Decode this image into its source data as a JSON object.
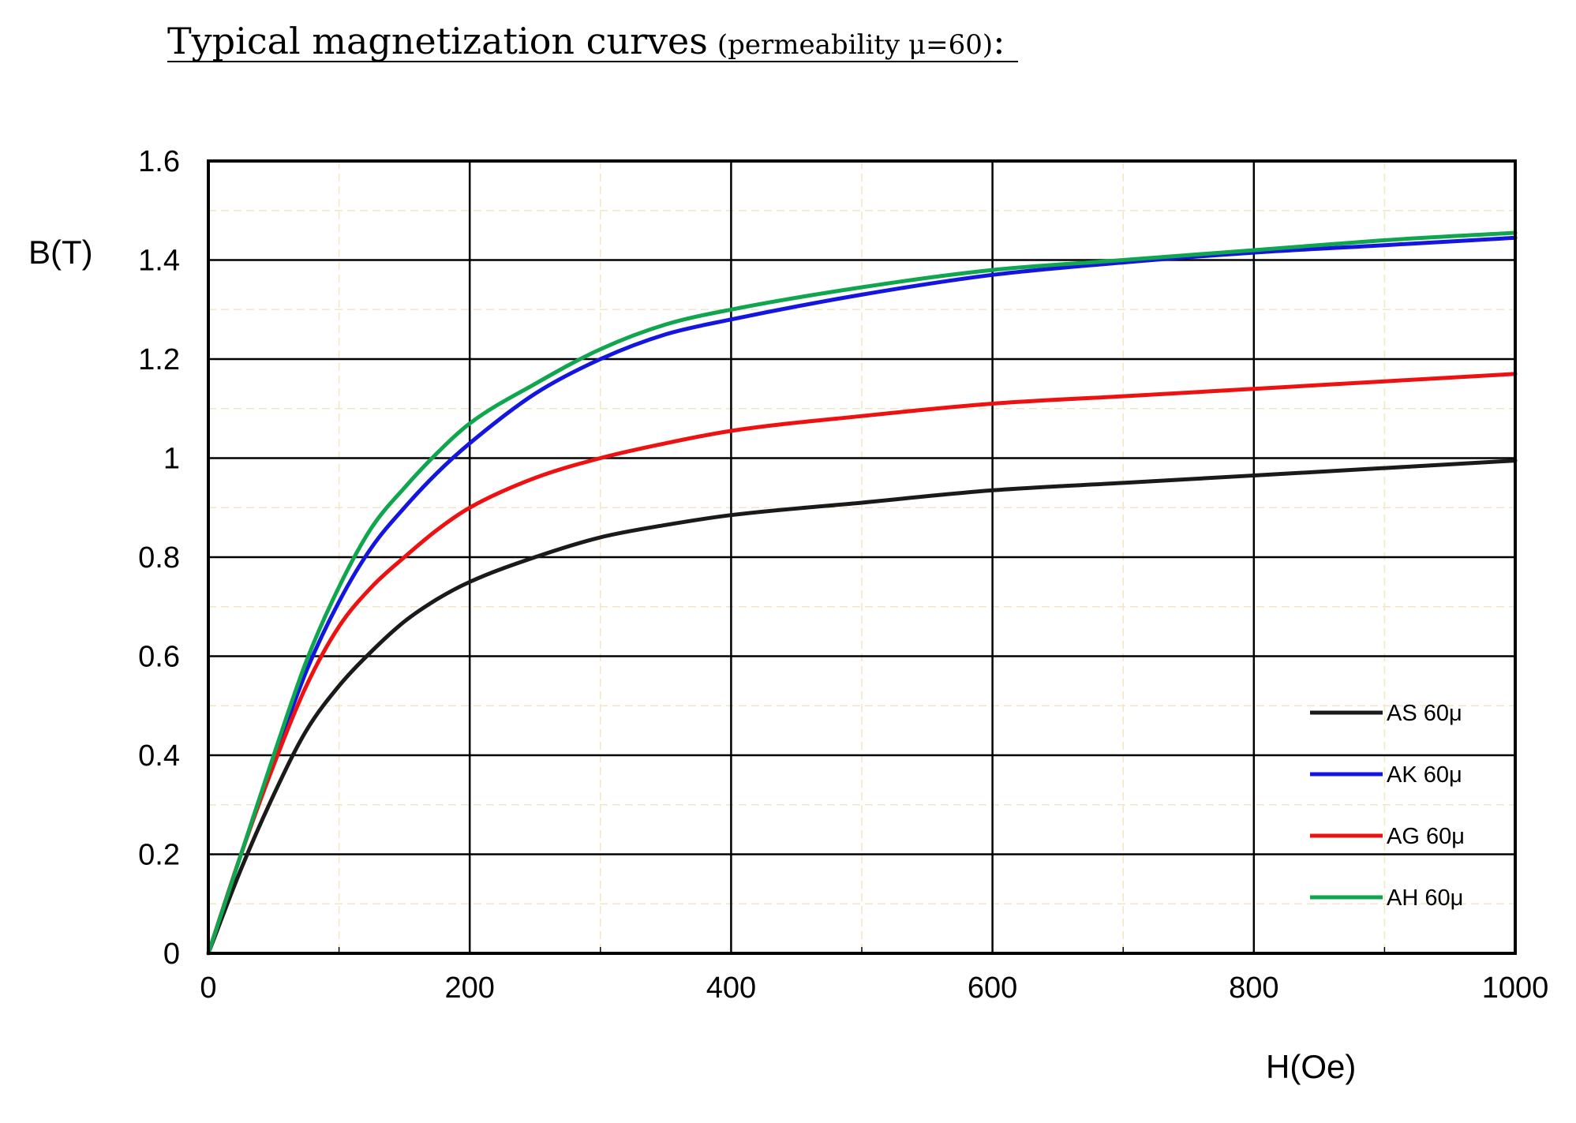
{
  "header": {
    "title": "Typical magnetization curves",
    "subtitle": "(permeability μ=60)",
    "colon": ":"
  },
  "chart_data": {
    "type": "line",
    "title": "Typical magnetization curves (permeability μ=60):",
    "xlabel": "H(Oe)",
    "ylabel": "B(T)",
    "xlim": [
      0,
      1000
    ],
    "ylim": [
      0,
      1.6
    ],
    "x_ticks": [
      "0",
      "200",
      "400",
      "600",
      "800",
      "1000"
    ],
    "y_ticks": [
      "0",
      "0.2",
      "0.4",
      "0.6",
      "0.8",
      "1",
      "1.2",
      "1.4",
      "1.6"
    ],
    "grid": true,
    "minor_grid": true,
    "legend_position": "bottom-right",
    "x": [
      0,
      25,
      50,
      75,
      100,
      125,
      150,
      175,
      200,
      250,
      300,
      350,
      400,
      500,
      600,
      700,
      800,
      900,
      1000
    ],
    "series": [
      {
        "name": "AS 60μ",
        "color": "#1a1a1a",
        "values": [
          0,
          0.17,
          0.32,
          0.45,
          0.54,
          0.61,
          0.67,
          0.715,
          0.75,
          0.8,
          0.84,
          0.865,
          0.885,
          0.91,
          0.935,
          0.95,
          0.965,
          0.98,
          0.995
        ]
      },
      {
        "name": "AK 60μ",
        "color": "#1515e0",
        "values": [
          0,
          0.2,
          0.39,
          0.57,
          0.71,
          0.82,
          0.9,
          0.97,
          1.03,
          1.13,
          1.2,
          1.25,
          1.28,
          1.33,
          1.37,
          1.395,
          1.415,
          1.43,
          1.445
        ]
      },
      {
        "name": "AG 60μ",
        "color": "#ee1111",
        "values": [
          0,
          0.2,
          0.38,
          0.54,
          0.66,
          0.74,
          0.8,
          0.855,
          0.9,
          0.96,
          1.0,
          1.03,
          1.055,
          1.085,
          1.11,
          1.125,
          1.14,
          1.155,
          1.17
        ]
      },
      {
        "name": "AH 60μ",
        "color": "#0fa64f",
        "values": [
          0,
          0.2,
          0.4,
          0.59,
          0.74,
          0.86,
          0.94,
          1.01,
          1.07,
          1.15,
          1.22,
          1.27,
          1.3,
          1.345,
          1.38,
          1.4,
          1.42,
          1.44,
          1.455
        ]
      }
    ]
  }
}
